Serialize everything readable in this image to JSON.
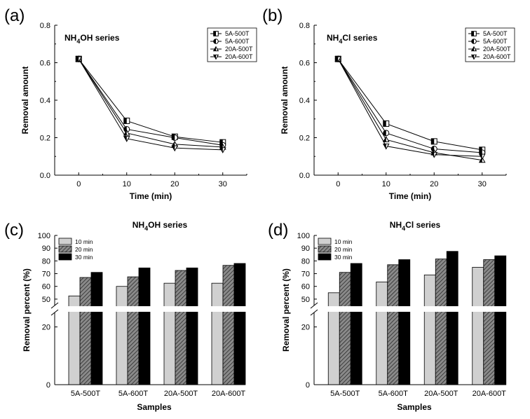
{
  "chart_data": [
    {
      "type": "line",
      "panel": "(a)",
      "title": "NH4OH series",
      "title_main": "NH",
      "title_sub": "4",
      "title_rest": "OH series",
      "xlabel": "Time (min)",
      "ylabel": "Removal amount",
      "x": [
        0,
        10,
        20,
        30
      ],
      "xticks": [
        "0",
        "10",
        "20",
        "30"
      ],
      "yticks": [
        "0.0",
        "0.2",
        "0.4",
        "0.6",
        "0.8"
      ],
      "ylim": [
        0,
        0.8
      ],
      "legend_position": "top-right",
      "series": [
        {
          "name": "5A-500T",
          "marker": "square-half",
          "values": [
            0.62,
            0.29,
            0.205,
            0.175
          ]
        },
        {
          "name": "5A-600T",
          "marker": "circle-half",
          "values": [
            0.62,
            0.245,
            0.2,
            0.16
          ]
        },
        {
          "name": "20A-500T",
          "marker": "triangle-up-half",
          "values": [
            0.62,
            0.225,
            0.165,
            0.15
          ]
        },
        {
          "name": "20A-600T",
          "marker": "triangle-down-half",
          "values": [
            0.62,
            0.195,
            0.145,
            0.135
          ]
        }
      ]
    },
    {
      "type": "line",
      "panel": "(b)",
      "title": "NH4Cl series",
      "title_main": "NH",
      "title_sub": "4",
      "title_rest": "Cl series",
      "xlabel": "Time (min)",
      "ylabel": "Removal amount",
      "x": [
        0,
        10,
        20,
        30
      ],
      "xticks": [
        "0",
        "10",
        "20",
        "30"
      ],
      "yticks": [
        "0.0",
        "0.2",
        "0.4",
        "0.6",
        "0.8"
      ],
      "ylim": [
        0,
        0.8
      ],
      "legend_position": "top-right",
      "series": [
        {
          "name": "5A-500T",
          "marker": "square-half",
          "values": [
            0.62,
            0.275,
            0.18,
            0.135
          ]
        },
        {
          "name": "5A-600T",
          "marker": "circle-half",
          "values": [
            0.62,
            0.225,
            0.14,
            0.12
          ]
        },
        {
          "name": "20A-500T",
          "marker": "triangle-up-half",
          "values": [
            0.62,
            0.19,
            0.12,
            0.08
          ]
        },
        {
          "name": "20A-600T",
          "marker": "triangle-down-half",
          "values": [
            0.62,
            0.155,
            0.11,
            0.1
          ]
        }
      ]
    },
    {
      "type": "bar",
      "panel": "(c)",
      "title": "NH4OH series",
      "title_main": "NH",
      "title_sub": "4",
      "title_rest": "OH series",
      "xlabel": "Samples",
      "ylabel": "Removal percent (%)",
      "categories": [
        "5A-500T",
        "5A-600T",
        "20A-500T",
        "20A-600T"
      ],
      "yticks_lower": [
        "0",
        "20"
      ],
      "yticks_upper": [
        "50",
        "60",
        "70",
        "80",
        "90",
        "100"
      ],
      "axis_break": [
        25,
        45
      ],
      "legend_position": "top-left",
      "series": [
        {
          "name": "10 min",
          "fill": "light-gray",
          "values": [
            52.5,
            60,
            62.5,
            62.5
          ]
        },
        {
          "name": "20 min",
          "fill": "hatched",
          "values": [
            67,
            67.5,
            72.5,
            76.5
          ]
        },
        {
          "name": "30 min",
          "fill": "black",
          "values": [
            71,
            74.5,
            74.5,
            78
          ]
        }
      ]
    },
    {
      "type": "bar",
      "panel": "(d)",
      "title": "NH4Cl series",
      "title_main": "NH",
      "title_sub": "4",
      "title_rest": "Cl series",
      "xlabel": "Samples",
      "ylabel": "Removal percent (%)",
      "categories": [
        "5A-500T",
        "5A-600T",
        "20A-500T",
        "20A-600T"
      ],
      "yticks_lower": [
        "0",
        "20"
      ],
      "yticks_upper": [
        "50",
        "60",
        "70",
        "80",
        "90",
        "100"
      ],
      "axis_break": [
        25,
        45
      ],
      "legend_position": "top-left",
      "series": [
        {
          "name": "10 min",
          "fill": "light-gray",
          "values": [
            55,
            63.5,
            69,
            75
          ]
        },
        {
          "name": "20 min",
          "fill": "hatched",
          "values": [
            71,
            77,
            81.5,
            81
          ]
        },
        {
          "name": "30 min",
          "fill": "black",
          "values": [
            78,
            81,
            87.5,
            84
          ]
        }
      ]
    }
  ]
}
